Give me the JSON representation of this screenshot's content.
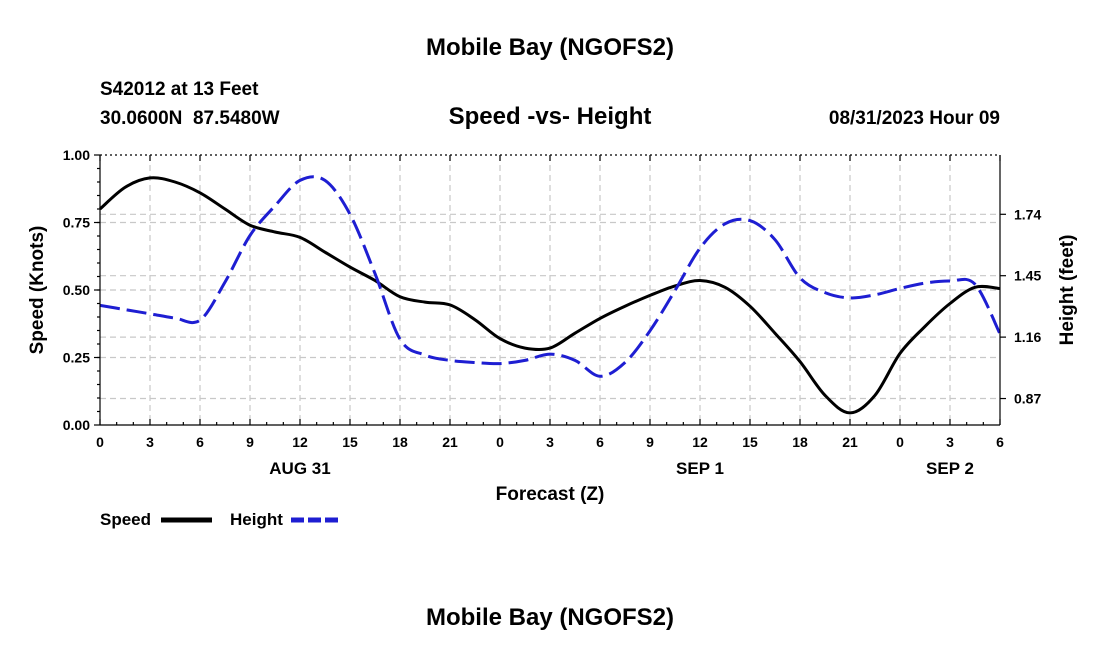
{
  "header": {
    "title": "Mobile Bay (NGOFS2)",
    "station": "S42012 at 13 Feet",
    "coords": "30.0600N  87.5480W",
    "subtitle": "Speed -vs- Height",
    "timestamp": "08/31/2023 Hour 09",
    "footer_title": "Mobile Bay (NGOFS2)"
  },
  "legend": {
    "speed_label": "Speed",
    "height_label": "Height"
  },
  "chart_data": {
    "type": "line",
    "title": "Speed -vs- Height",
    "xlabel": "Forecast (Z)",
    "ylabel_left": "Speed (Knots)",
    "ylabel_right": "Height (feet)",
    "x_hours_range": [
      0,
      54
    ],
    "ylim_left": [
      0.0,
      1.0
    ],
    "ylim_right": [
      0.745,
      2.02
    ],
    "x_tick_hours": [
      0,
      3,
      6,
      9,
      12,
      15,
      18,
      21,
      24,
      27,
      30,
      33,
      36,
      39,
      42,
      45,
      48,
      51,
      54
    ],
    "x_tick_labels": [
      "0",
      "3",
      "6",
      "9",
      "12",
      "15",
      "18",
      "21",
      "0",
      "3",
      "6",
      "9",
      "12",
      "15",
      "18",
      "21",
      "0",
      "3",
      "6"
    ],
    "date_labels": [
      {
        "hour": 12,
        "label": "AUG 31"
      },
      {
        "hour": 36,
        "label": "SEP 1"
      },
      {
        "hour": 51,
        "label": "SEP 2"
      }
    ],
    "left_ticks": [
      {
        "value": 0.0,
        "label": "0.00"
      },
      {
        "value": 0.25,
        "label": "0.25"
      },
      {
        "value": 0.5,
        "label": "0.50"
      },
      {
        "value": 0.75,
        "label": "0.75"
      },
      {
        "value": 1.0,
        "label": "1.00"
      }
    ],
    "right_ticks": [
      {
        "value": 0.87,
        "label": "0.87"
      },
      {
        "value": 1.16,
        "label": "1.16"
      },
      {
        "value": 1.45,
        "label": "1.45"
      },
      {
        "value": 1.74,
        "label": "1.74"
      }
    ],
    "series": [
      {
        "name": "Speed",
        "axis": "left",
        "color": "#000000",
        "dash": "solid",
        "points": [
          [
            0,
            0.8
          ],
          [
            1.5,
            0.88
          ],
          [
            3,
            0.915
          ],
          [
            4.5,
            0.9
          ],
          [
            6,
            0.86
          ],
          [
            7.5,
            0.8
          ],
          [
            9,
            0.74
          ],
          [
            10.5,
            0.715
          ],
          [
            12,
            0.695
          ],
          [
            13.5,
            0.64
          ],
          [
            15,
            0.585
          ],
          [
            16.5,
            0.535
          ],
          [
            18,
            0.475
          ],
          [
            19.5,
            0.455
          ],
          [
            21,
            0.445
          ],
          [
            22.5,
            0.39
          ],
          [
            24,
            0.32
          ],
          [
            25.5,
            0.285
          ],
          [
            27,
            0.285
          ],
          [
            28.5,
            0.34
          ],
          [
            30,
            0.395
          ],
          [
            31.5,
            0.44
          ],
          [
            33,
            0.48
          ],
          [
            34.5,
            0.515
          ],
          [
            36,
            0.535
          ],
          [
            37.5,
            0.51
          ],
          [
            39,
            0.44
          ],
          [
            40.5,
            0.34
          ],
          [
            42,
            0.235
          ],
          [
            43.5,
            0.11
          ],
          [
            45,
            0.045
          ],
          [
            46.5,
            0.11
          ],
          [
            48,
            0.265
          ],
          [
            49.5,
            0.365
          ],
          [
            51,
            0.45
          ],
          [
            52.5,
            0.51
          ],
          [
            54,
            0.505
          ]
        ]
      },
      {
        "name": "Height",
        "axis": "right",
        "color": "#1e1ed2",
        "dash": "dashed",
        "points": [
          [
            0,
            1.31
          ],
          [
            1.5,
            1.29
          ],
          [
            3,
            1.27
          ],
          [
            4.5,
            1.25
          ],
          [
            6,
            1.24
          ],
          [
            7.5,
            1.42
          ],
          [
            9,
            1.64
          ],
          [
            10.5,
            1.78
          ],
          [
            12,
            1.9
          ],
          [
            13.5,
            1.9
          ],
          [
            15,
            1.74
          ],
          [
            16.5,
            1.46
          ],
          [
            18,
            1.15
          ],
          [
            19.5,
            1.075
          ],
          [
            21,
            1.05
          ],
          [
            22.5,
            1.04
          ],
          [
            24,
            1.035
          ],
          [
            25.5,
            1.05
          ],
          [
            27,
            1.08
          ],
          [
            28.5,
            1.05
          ],
          [
            30,
            0.975
          ],
          [
            31.5,
            1.04
          ],
          [
            33,
            1.19
          ],
          [
            34.5,
            1.38
          ],
          [
            36,
            1.58
          ],
          [
            37.5,
            1.695
          ],
          [
            39,
            1.71
          ],
          [
            40.5,
            1.62
          ],
          [
            42,
            1.44
          ],
          [
            43.5,
            1.37
          ],
          [
            45,
            1.345
          ],
          [
            46.5,
            1.36
          ],
          [
            48,
            1.39
          ],
          [
            49.5,
            1.415
          ],
          [
            51,
            1.425
          ],
          [
            52.5,
            1.41
          ],
          [
            54,
            1.175
          ]
        ]
      }
    ]
  }
}
